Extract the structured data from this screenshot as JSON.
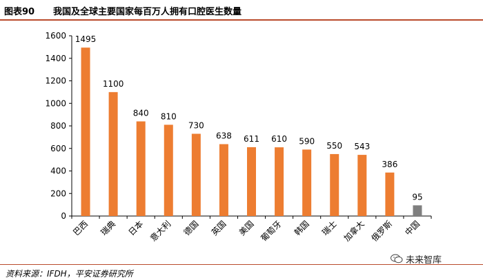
{
  "header": {
    "figure_number": "图表90",
    "title": "我国及全球主要国家每百万人拥有口腔医生数量"
  },
  "footer": {
    "source": "资料来源：IFDH，平安证券研究所",
    "watermark_text": "未来智库",
    "watermark_icon": "wechat-bubble-icon"
  },
  "colors": {
    "bar": "#ED7D31",
    "bar_highlight": "#7F7F7F",
    "axis": "#000000",
    "rule": "#B94A2A"
  },
  "chart_data": {
    "type": "bar",
    "title": "",
    "xlabel": "",
    "ylabel": "",
    "ylim": [
      0,
      1600
    ],
    "yticks": [
      0,
      200,
      400,
      600,
      800,
      1000,
      1200,
      1400,
      1600
    ],
    "grid": false,
    "legend": "none",
    "categories": [
      "巴西",
      "瑞典",
      "日本",
      "意大利",
      "德国",
      "英国",
      "美国",
      "葡萄牙",
      "韩国",
      "瑞士",
      "加拿大",
      "俄罗斯",
      "中国"
    ],
    "values": [
      1495,
      1100,
      840,
      810,
      730,
      638,
      611,
      610,
      590,
      550,
      543,
      386,
      95
    ],
    "highlight_category": "中国"
  }
}
